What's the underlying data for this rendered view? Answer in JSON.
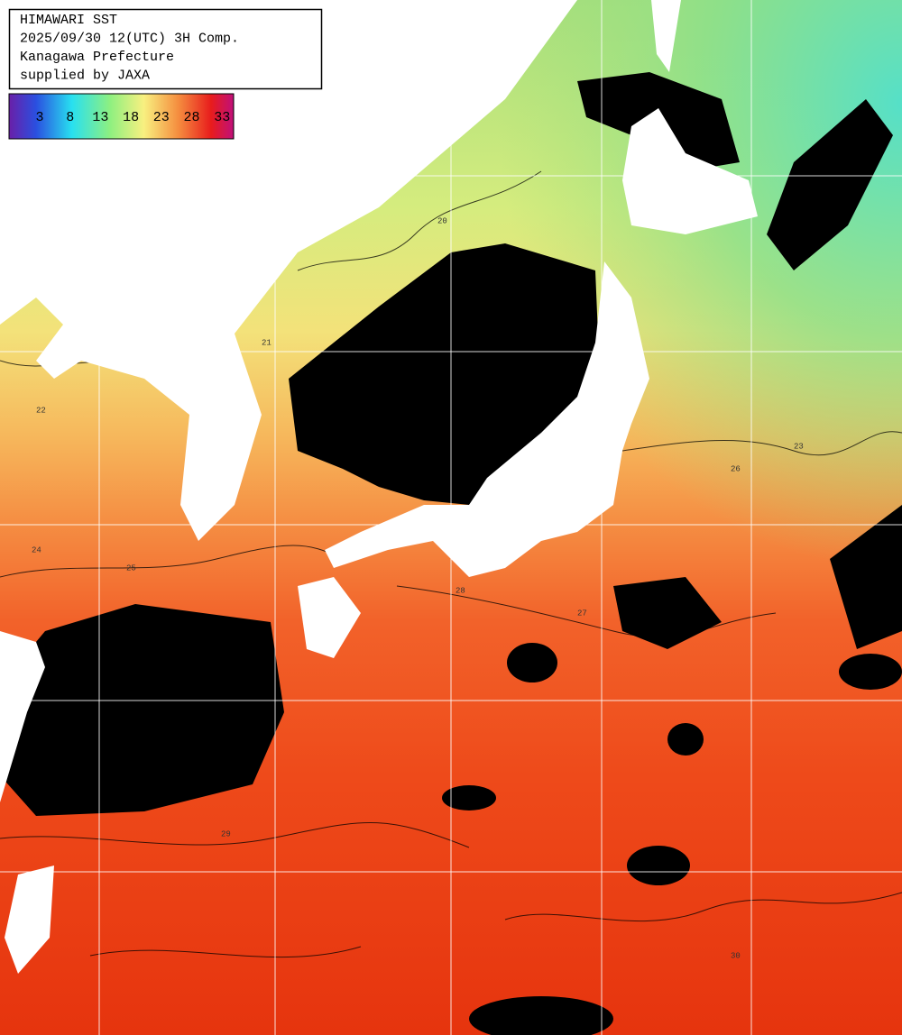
{
  "header": {
    "lines": [
      "HIMAWARI SST",
      "2025/09/30 12(UTC) 3H Comp.",
      "Kanagawa Prefecture",
      "supplied by JAXA"
    ]
  },
  "colorbar": {
    "labels": [
      3,
      8,
      13,
      18,
      23,
      28,
      33
    ]
  },
  "contour_labels": [
    "20",
    "21",
    "22",
    "23",
    "24",
    "25",
    "26",
    "27",
    "28",
    "29",
    "30"
  ]
}
